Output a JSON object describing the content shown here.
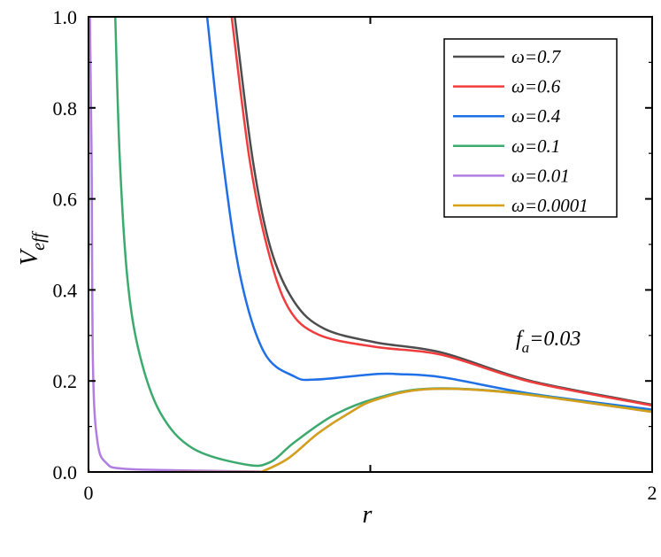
{
  "chart_data": {
    "type": "line",
    "title": "",
    "xlabel": "r",
    "ylabel": "V",
    "ylabel_sub": "eff",
    "xlim": [
      0,
      2
    ],
    "ylim": [
      0,
      1.0
    ],
    "x_ticks": [
      0,
      1,
      2
    ],
    "x_tick_labels": [
      "0",
      "",
      "2"
    ],
    "y_ticks": [
      0.0,
      0.2,
      0.4,
      0.6,
      0.8,
      1.0
    ],
    "y_tick_labels": [
      "0.0",
      "0.2",
      "0.4",
      "0.6",
      "0.8",
      "1.0"
    ],
    "grid": false,
    "legend_position": "top-right",
    "annotation": {
      "main": "f",
      "sub": "a",
      "rest": "=0.03"
    },
    "series": [
      {
        "name": "ω=0.7",
        "color": "#4d4d4d",
        "x": [
          0.519,
          0.582,
          0.646,
          0.73,
          0.836,
          1.016,
          1.256,
          1.57,
          2.0
        ],
        "y": [
          1.0,
          0.689,
          0.492,
          0.374,
          0.315,
          0.285,
          0.262,
          0.2,
          0.148
        ]
      },
      {
        "name": "ω=0.6",
        "color": "#f03c3c",
        "x": [
          0.508,
          0.571,
          0.635,
          0.709,
          0.815,
          1.016,
          1.256,
          1.57,
          2.0
        ],
        "y": [
          1.0,
          0.689,
          0.492,
          0.361,
          0.302,
          0.275,
          0.257,
          0.198,
          0.146
        ]
      },
      {
        "name": "ω=0.4",
        "color": "#1f6fe6",
        "x": [
          0.421,
          0.476,
          0.54,
          0.624,
          0.73,
          0.804,
          1.016,
          1.1,
          1.256,
          1.57,
          2.0
        ],
        "y": [
          1.0,
          0.689,
          0.426,
          0.262,
          0.21,
          0.203,
          0.215,
          0.215,
          0.208,
          0.172,
          0.137
        ]
      },
      {
        "name": "ω=0.1",
        "color": "#3caa6e",
        "x": [
          0.095,
          0.111,
          0.138,
          0.18,
          0.254,
          0.37,
          0.561,
          0.646,
          0.73,
          0.868,
          1.016,
          1.2,
          1.5,
          2.0
        ],
        "y": [
          1.0,
          0.689,
          0.426,
          0.262,
          0.131,
          0.052,
          0.016,
          0.022,
          0.065,
          0.124,
          0.161,
          0.183,
          0.175,
          0.133
        ]
      },
      {
        "name": "ω=0.01",
        "color": "#b07ee0",
        "x": [
          0.005,
          0.011,
          0.016,
          0.032,
          0.063,
          0.127,
          0.39,
          0.6,
          0.62,
          0.709,
          0.815,
          0.921,
          1.016,
          1.2,
          1.5,
          2.0
        ],
        "y": [
          1.0,
          0.689,
          0.23,
          0.066,
          0.02,
          0.007,
          0.003,
          0.001,
          0.002,
          0.03,
          0.085,
          0.128,
          0.158,
          0.182,
          0.174,
          0.132
        ]
      },
      {
        "name": "ω=0.0001",
        "color": "#d4a017",
        "x": [
          0.0,
          0.001,
          0.003,
          0.3,
          0.6,
          0.62,
          0.709,
          0.815,
          0.921,
          1.016,
          1.2,
          1.5,
          2.0
        ],
        "y": [
          1.0,
          0.5,
          0.0,
          0.0,
          0.0,
          0.002,
          0.03,
          0.085,
          0.128,
          0.158,
          0.182,
          0.174,
          0.132
        ]
      }
    ]
  }
}
